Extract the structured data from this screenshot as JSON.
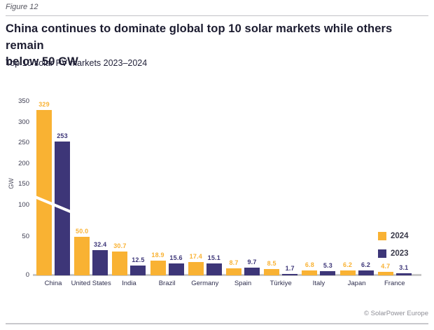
{
  "figure_label": "Figure 12",
  "title_line1": "China continues to dominate global top 10 solar markets while others remain",
  "title_line2": "below 50 GW",
  "subtitle": "Top 10 solar PV markets 2023–2024",
  "ylabel": "GW",
  "credit": "© SolarPower Europe",
  "colors": {
    "series_2024": "#F9B233",
    "series_2023": "#3D3678",
    "axis_text": "#3C3C50",
    "category_text": "#2E2E4E",
    "baseline": "#C8C8C8"
  },
  "legend": [
    {
      "label": "2024",
      "color": "#F9B233"
    },
    {
      "label": "2023",
      "color": "#3D3678"
    }
  ],
  "chart_data": {
    "type": "bar",
    "title": "China continues to dominate global top 10 solar markets while others remain below 50 GW",
    "subtitle": "Top 10 solar PV markets 2023–2024",
    "xlabel": "",
    "ylabel": "GW",
    "categories": [
      "China",
      "United States",
      "India",
      "Brazil",
      "Germany",
      "Spain",
      "Türkiye",
      "Italy",
      "Japan",
      "France"
    ],
    "series": [
      {
        "name": "2024",
        "color": "#F9B233",
        "values": [
          329,
          50.0,
          30.7,
          18.9,
          17.4,
          8.7,
          8.5,
          6.8,
          6.2,
          4.7
        ],
        "value_labels": [
          "329",
          "50.0",
          "30.7",
          "18.9",
          "17.4",
          "8.7",
          "8.5",
          "6.8",
          "6.2",
          "4.7"
        ]
      },
      {
        "name": "2023",
        "color": "#3D3678",
        "values": [
          253,
          32.4,
          12.5,
          15.6,
          15.1,
          9.7,
          1.7,
          5.3,
          6.2,
          3.1
        ],
        "value_labels": [
          "253",
          "32.4",
          "12.5",
          "15.6",
          "15.1",
          "9.7",
          "1.7",
          "5.3",
          "6.2",
          "3.1"
        ]
      }
    ],
    "ylim": [
      0,
      350
    ],
    "yticks": [
      0,
      50,
      100,
      150,
      200,
      250,
      300,
      350
    ],
    "grid": false,
    "legend_position": "right",
    "axis_break": {
      "at": 100,
      "note": "y-axis compressed above 100 GW; white break mark across China bars"
    }
  }
}
